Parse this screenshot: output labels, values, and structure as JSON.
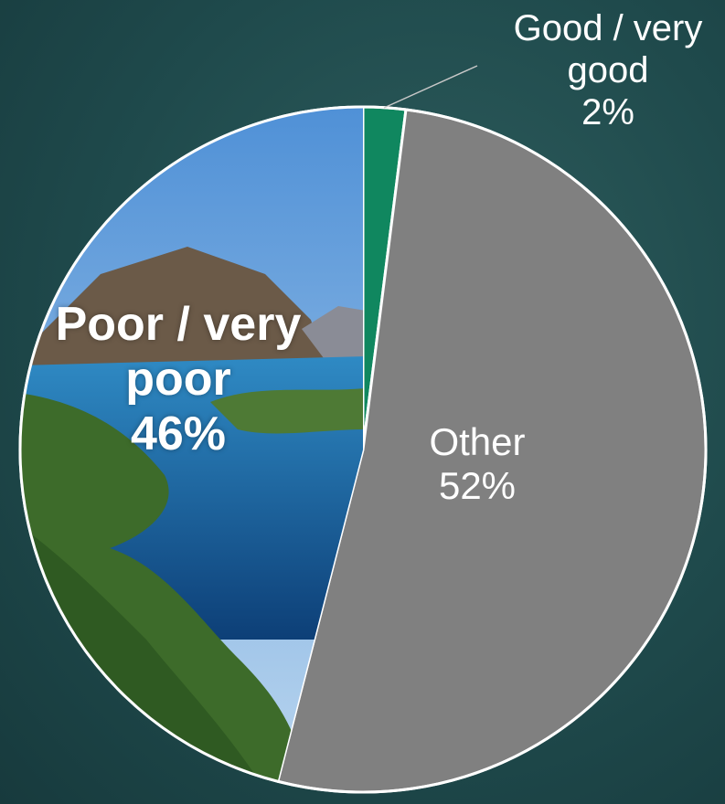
{
  "chart_data": {
    "type": "pie",
    "categories": [
      "Good / very good",
      "Other",
      "Poor / very poor"
    ],
    "values": [
      2,
      52,
      46
    ],
    "value_labels": [
      "2%",
      "52%",
      "46%"
    ],
    "colors": [
      "#10875f",
      "#808080",
      "#3f6e33"
    ]
  }
}
